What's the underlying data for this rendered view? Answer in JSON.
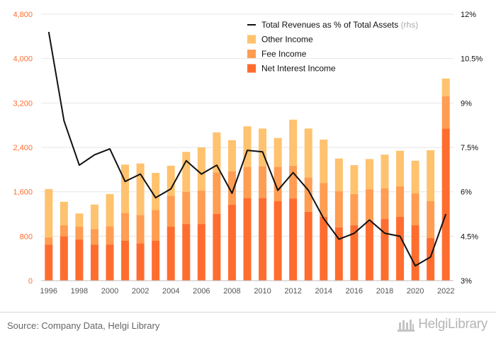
{
  "chart_data": {
    "type": "bar",
    "stacked": true,
    "categories": [
      "1996",
      "1997",
      "1998",
      "1999",
      "2000",
      "2001",
      "2002",
      "2003",
      "2004",
      "2005",
      "2006",
      "2007",
      "2008",
      "2009",
      "2010",
      "2011",
      "2012",
      "2013",
      "2014",
      "2015",
      "2016",
      "2017",
      "2018",
      "2019",
      "2020",
      "2021",
      "2022"
    ],
    "x_tick_labels": [
      "1996",
      "1998",
      "2000",
      "2002",
      "2004",
      "2006",
      "2008",
      "2010",
      "2012",
      "2014",
      "2016",
      "2018",
      "2020",
      "2022"
    ],
    "series": [
      {
        "name": "Net Interest Income",
        "color": "#ff6d2e",
        "values": [
          650,
          800,
          740,
          650,
          650,
          720,
          670,
          720,
          970,
          1020,
          1020,
          1200,
          1370,
          1490,
          1490,
          1430,
          1480,
          1240,
          1150,
          960,
          1000,
          1060,
          1110,
          1150,
          1000,
          770,
          2740
        ]
      },
      {
        "name": "Fee Income",
        "color": "#ff9d52",
        "values": [
          130,
          200,
          230,
          280,
          330,
          500,
          510,
          550,
          560,
          580,
          600,
          750,
          600,
          560,
          570,
          620,
          590,
          620,
          610,
          650,
          560,
          590,
          550,
          550,
          570,
          660,
          580
        ]
      },
      {
        "name": "Other Income",
        "color": "#ffc26e",
        "values": [
          870,
          420,
          240,
          440,
          580,
          870,
          930,
          670,
          540,
          720,
          780,
          720,
          560,
          730,
          680,
          520,
          830,
          880,
          780,
          590,
          520,
          540,
          610,
          640,
          590,
          920,
          320
        ]
      }
    ],
    "line_series": {
      "name": "Total Revenues as % of Total Assets",
      "axis_note": "(rhs)",
      "color": "#111111",
      "values": [
        11.4,
        8.4,
        6.9,
        7.25,
        7.45,
        6.35,
        6.6,
        5.8,
        6.1,
        7.05,
        6.6,
        6.9,
        5.95,
        7.4,
        7.35,
        6.05,
        6.65,
        6.05,
        5.1,
        4.4,
        4.6,
        5.05,
        4.6,
        4.5,
        3.5,
        3.8,
        5.25
      ]
    },
    "y_left": {
      "min": 0,
      "max": 4800,
      "ticks": [
        "0",
        "800",
        "1,600",
        "2,400",
        "3,200",
        "4,000",
        "4,800"
      ],
      "tick_values": [
        0,
        800,
        1600,
        2400,
        3200,
        4000,
        4800
      ]
    },
    "y_right": {
      "min": 3,
      "max": 12,
      "ticks": [
        "3%",
        "4.5%",
        "6%",
        "7.5%",
        "9%",
        "10.5%",
        "12%"
      ],
      "tick_values": [
        3,
        4.5,
        6,
        7.5,
        9,
        10.5,
        12
      ]
    },
    "left_tick_color": "#ff6d2e",
    "grid": true,
    "legend_placement": "top-right",
    "title": "",
    "xlabel": "",
    "ylabel": ""
  },
  "footer": {
    "source": "Source: Company Data, Helgi Library",
    "brand": "HelgiLibrary"
  }
}
